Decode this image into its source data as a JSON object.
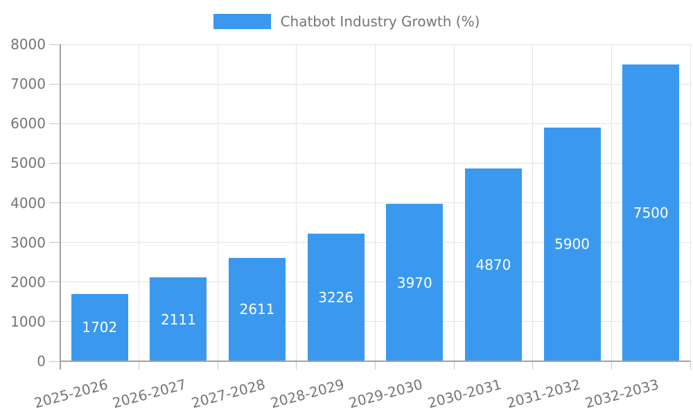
{
  "chart_data": {
    "type": "bar",
    "title": "",
    "legend_label": "Chatbot Industry Growth (%)",
    "legend_position": "top",
    "categories": [
      "2025-2026",
      "2026-2027",
      "2027-2028",
      "2028-2029",
      "2029-2030",
      "2030-2031",
      "2031-2032",
      "2032-2033"
    ],
    "values": [
      1702,
      2111,
      2611,
      3226,
      3970,
      4870,
      5900,
      7500
    ],
    "xlabel": "",
    "ylabel": "",
    "ylim": [
      0,
      8000
    ],
    "ytick_step": 1000,
    "yticks": [
      0,
      1000,
      2000,
      3000,
      4000,
      5000,
      6000,
      7000,
      8000
    ],
    "grid": true,
    "value_labels_inside_bars": true,
    "x_label_rotation_deg": -15,
    "colors": {
      "bar": "#3a99ee",
      "value_label": "#ffffff",
      "grid": "#e3e3e3",
      "tick": "#c6c6c6",
      "axis": "#a2a2a2",
      "text": "#757575",
      "background": "#ffffff"
    }
  }
}
